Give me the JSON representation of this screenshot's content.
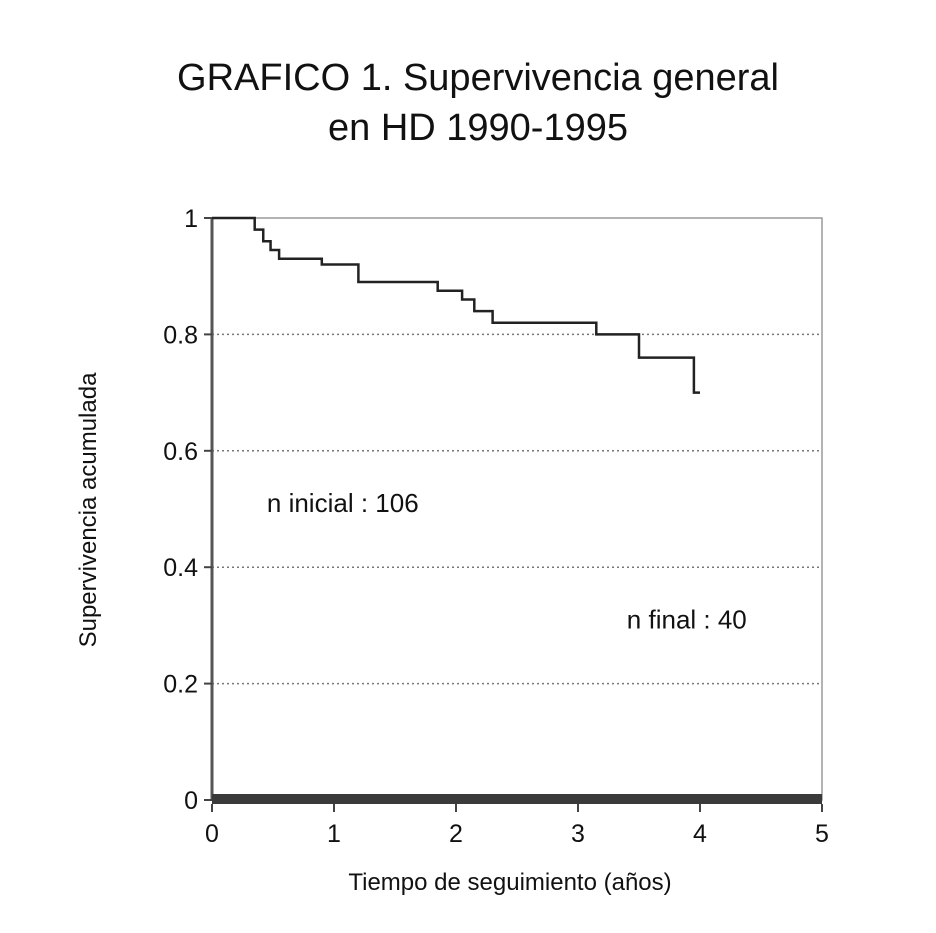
{
  "chart_data": {
    "type": "line",
    "title_lines": [
      "GRAFICO 1. Supervivencia general",
      "en  HD  1990-1995"
    ],
    "xlabel": "Tiempo de seguimiento (años)",
    "ylabel": "Supervivencia acumulada",
    "xlim": [
      0,
      5
    ],
    "ylim": [
      0,
      1
    ],
    "x_ticks": [
      "0",
      "1",
      "2",
      "3",
      "4",
      "5"
    ],
    "y_ticks": [
      "0",
      "0.2",
      "0.4",
      "0.6",
      "0.8",
      "1"
    ],
    "grid": "horizontal dotted",
    "step": true,
    "series": [
      {
        "x": [
          0,
          0.35,
          0.42,
          0.48,
          0.55,
          0.9,
          1.2,
          1.85,
          2.05,
          2.15,
          2.3,
          3.15,
          3.5,
          3.95,
          4.0
        ],
        "y": [
          1.0,
          0.98,
          0.96,
          0.945,
          0.93,
          0.92,
          0.89,
          0.875,
          0.86,
          0.84,
          0.82,
          0.8,
          0.76,
          0.7,
          0.7
        ]
      }
    ],
    "annotations": [
      {
        "text": "n inicial : 106",
        "x": 0.45,
        "y": 0.495
      },
      {
        "text": "n final : 40",
        "x": 3.4,
        "y": 0.295
      }
    ]
  }
}
